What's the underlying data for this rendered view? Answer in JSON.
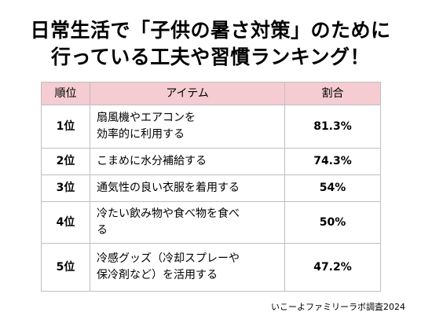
{
  "title": {
    "line1": "日常生活で「子供の暑さ対策」のために",
    "line2": "行っている工夫や習慣ランキング！"
  },
  "table": {
    "headers": {
      "rank": "順位",
      "item": "アイテム",
      "ratio": "割合"
    },
    "rows": [
      {
        "rank": "1位",
        "item": "扇風機やエアコンを\n効率的に利用する",
        "ratio": "81.3%"
      },
      {
        "rank": "2位",
        "item": "こまめに水分補給する",
        "ratio": "74.3%"
      },
      {
        "rank": "3位",
        "item": "通気性の良い衣服を着用する",
        "ratio": "54%"
      },
      {
        "rank": "4位",
        "item": "冷たい飲み物や食べ物を食べ\nる",
        "ratio": "50%"
      },
      {
        "rank": "5位",
        "item": "冷感グッズ（冷却スプレーや\n保冷剤など）を活用する",
        "ratio": "47.2%"
      }
    ]
  },
  "source": "いこーよファミリーラボ調査2024"
}
